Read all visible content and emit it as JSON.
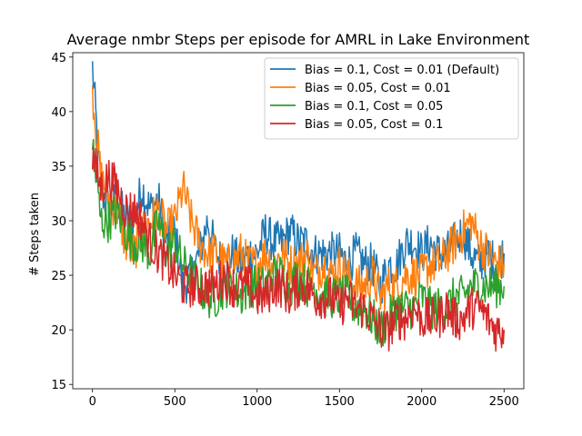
{
  "chart_data": {
    "type": "line",
    "title": "Average nmbr Steps per episode for AMRL in Lake Environment",
    "xlabel": "",
    "ylabel": "# Steps taken",
    "xlim": [
      -120,
      2620
    ],
    "ylim": [
      14.6,
      45.4
    ],
    "xticks": [
      0,
      500,
      1000,
      1500,
      2000,
      2500
    ],
    "yticks": [
      15,
      20,
      25,
      30,
      35,
      40,
      45
    ],
    "grid": false,
    "legend_position": "upper right",
    "series": [
      {
        "name": "Bias = 0.1, Cost = 0.01 (Default)",
        "color": "#1f77b4",
        "x": [
          0,
          50,
          100,
          150,
          200,
          250,
          300,
          350,
          400,
          450,
          500,
          550,
          600,
          650,
          700,
          750,
          800,
          850,
          900,
          950,
          1000,
          1050,
          1100,
          1150,
          1200,
          1250,
          1300,
          1350,
          1400,
          1450,
          1500,
          1550,
          1600,
          1650,
          1700,
          1750,
          1800,
          1850,
          1900,
          1950,
          2000,
          2050,
          2100,
          2150,
          2200,
          2250,
          2300,
          2350,
          2400,
          2450,
          2500
        ],
        "y": [
          44,
          33,
          31,
          32,
          30,
          30,
          33,
          31,
          32,
          28,
          29,
          24,
          25,
          27,
          30,
          27,
          26,
          27,
          26,
          27,
          27,
          29,
          28,
          28,
          29,
          28,
          28,
          27,
          27,
          27,
          27,
          26,
          27,
          26,
          26,
          24,
          26,
          26,
          28,
          28,
          27,
          28,
          27,
          27,
          28,
          29,
          27,
          26,
          27,
          26,
          27
        ]
      },
      {
        "name": "Bias = 0.05, Cost = 0.01",
        "color": "#ff7f0e",
        "x": [
          0,
          50,
          100,
          150,
          200,
          250,
          300,
          350,
          400,
          450,
          500,
          550,
          600,
          650,
          700,
          750,
          800,
          850,
          900,
          950,
          1000,
          1050,
          1100,
          1150,
          1200,
          1250,
          1300,
          1350,
          1400,
          1450,
          1500,
          1550,
          1600,
          1650,
          1700,
          1750,
          1800,
          1850,
          1900,
          1950,
          2000,
          2050,
          2100,
          2150,
          2200,
          2250,
          2300,
          2350,
          2400,
          2450,
          2500
        ],
        "y": [
          42,
          34,
          32,
          31,
          28,
          27,
          29,
          30,
          31,
          29,
          30,
          33,
          30,
          28,
          27,
          27,
          26,
          26,
          27,
          26,
          26,
          27,
          26,
          27,
          26,
          26,
          27,
          25,
          26,
          25,
          26,
          25,
          24,
          24,
          25,
          23,
          24,
          24,
          25,
          25,
          25,
          26,
          26,
          27,
          28,
          29,
          30,
          28,
          27,
          26,
          26
        ]
      },
      {
        "name": "Bias = 0.1, Cost = 0.05",
        "color": "#2ca02c",
        "x": [
          0,
          50,
          100,
          150,
          200,
          250,
          300,
          350,
          400,
          450,
          500,
          550,
          600,
          650,
          700,
          750,
          800,
          850,
          900,
          950,
          1000,
          1050,
          1100,
          1150,
          1200,
          1250,
          1300,
          1350,
          1400,
          1450,
          1500,
          1550,
          1600,
          1650,
          1700,
          1750,
          1800,
          1850,
          1900,
          1950,
          2000,
          2050,
          2100,
          2150,
          2200,
          2250,
          2300,
          2350,
          2400,
          2450,
          2500
        ],
        "y": [
          37,
          30,
          30,
          31,
          29,
          28,
          28,
          27,
          30,
          27,
          28,
          26,
          25,
          24,
          23,
          23,
          24,
          24,
          23,
          24,
          24,
          24,
          25,
          25,
          24,
          25,
          24,
          24,
          23,
          23,
          23,
          23,
          22,
          22,
          21,
          20,
          21,
          22,
          22,
          22,
          23,
          22,
          22,
          22,
          23,
          23,
          24,
          24,
          24,
          24,
          24
        ]
      },
      {
        "name": "Bias = 0.05, Cost = 0.1",
        "color": "#d62728",
        "x": [
          0,
          50,
          100,
          150,
          200,
          250,
          300,
          350,
          400,
          450,
          500,
          550,
          600,
          650,
          700,
          750,
          800,
          850,
          900,
          950,
          1000,
          1050,
          1100,
          1150,
          1200,
          1250,
          1300,
          1350,
          1400,
          1450,
          1500,
          1550,
          1600,
          1650,
          1700,
          1750,
          1800,
          1850,
          1900,
          1950,
          2000,
          2050,
          2100,
          2150,
          2200,
          2250,
          2300,
          2350,
          2400,
          2450,
          2500
        ],
        "y": [
          36,
          33,
          34,
          33,
          31,
          31,
          30,
          28,
          27,
          26,
          25,
          24,
          24,
          24,
          24,
          24,
          25,
          24,
          24,
          24,
          23,
          23,
          24,
          24,
          23,
          24,
          24,
          23,
          23,
          23,
          22,
          23,
          22,
          22,
          21,
          20,
          20,
          21,
          21,
          22,
          21,
          21,
          21,
          22,
          21,
          21,
          22,
          22,
          21,
          20,
          20
        ]
      }
    ]
  }
}
